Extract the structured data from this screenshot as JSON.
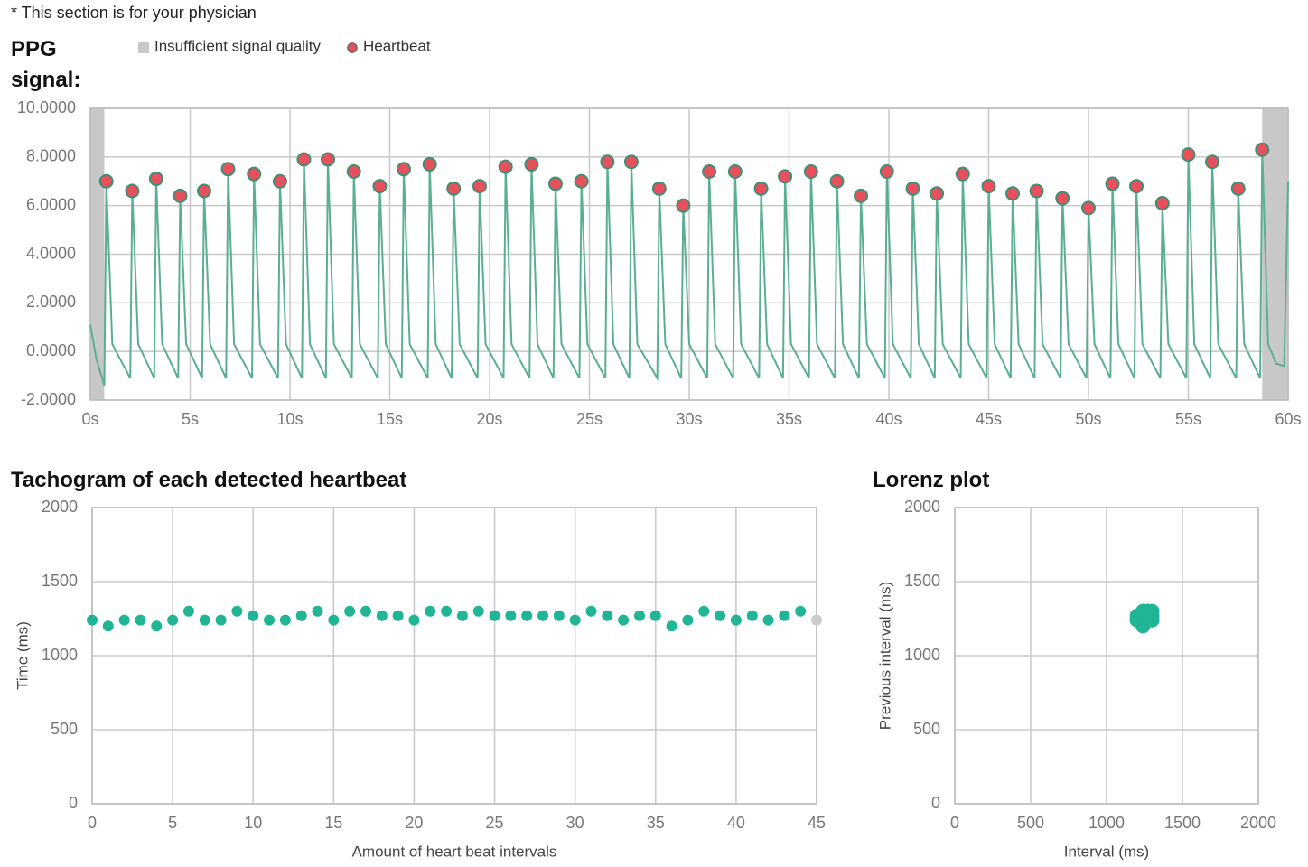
{
  "note": "* This section is for your physician",
  "chart_data": [
    {
      "type": "line",
      "title": "PPG signal:",
      "xlim": [
        0,
        60
      ],
      "ylim": [
        -2,
        10
      ],
      "xticks": [
        {
          "value": 0,
          "label": "0s"
        },
        {
          "value": 5,
          "label": "5s"
        },
        {
          "value": 10,
          "label": "10s"
        },
        {
          "value": 15,
          "label": "15s"
        },
        {
          "value": 20,
          "label": "20s"
        },
        {
          "value": 25,
          "label": "25s"
        },
        {
          "value": 30,
          "label": "30s"
        },
        {
          "value": 35,
          "label": "35s"
        },
        {
          "value": 40,
          "label": "40s"
        },
        {
          "value": 45,
          "label": "45s"
        },
        {
          "value": 50,
          "label": "50s"
        },
        {
          "value": 55,
          "label": "55s"
        },
        {
          "value": 60,
          "label": "60s"
        }
      ],
      "yticks": [
        {
          "value": -2,
          "label": "-2.0000"
        },
        {
          "value": 0,
          "label": "0.0000"
        },
        {
          "value": 2,
          "label": "2.0000"
        },
        {
          "value": 4,
          "label": "4.0000"
        },
        {
          "value": 6,
          "label": "6.0000"
        },
        {
          "value": 8,
          "label": "8.0000"
        },
        {
          "value": 10,
          "label": "10.0000"
        }
      ],
      "grid": true,
      "insufficient": {
        "name": "Insufficient signal quality",
        "color": "#c8c8c8",
        "regions": [
          [
            0,
            0.7
          ],
          [
            58.7,
            60
          ]
        ]
      },
      "series": [
        {
          "name": "Heartbeat",
          "color": "#e8505b",
          "marker": true,
          "x": [
            0.8,
            2.1,
            3.3,
            4.5,
            5.7,
            6.9,
            8.2,
            9.5,
            10.7,
            11.9,
            13.2,
            14.5,
            15.7,
            17.0,
            18.2,
            19.5,
            20.8,
            22.1,
            23.3,
            24.6,
            25.9,
            27.1,
            28.5,
            29.7,
            31.0,
            32.3,
            33.6,
            34.8,
            36.1,
            37.4,
            38.6,
            39.9,
            41.2,
            42.4,
            43.7,
            45.0,
            46.2,
            47.4,
            48.7,
            50.0,
            51.2,
            52.4,
            53.7,
            55.0,
            56.2,
            57.5,
            58.7
          ],
          "values": [
            7.0,
            6.6,
            7.1,
            6.4,
            6.6,
            7.5,
            7.3,
            7.0,
            7.9,
            7.9,
            7.4,
            6.8,
            7.5,
            7.7,
            6.7,
            6.8,
            7.6,
            7.7,
            6.9,
            7.0,
            7.8,
            7.8,
            6.7,
            6.0,
            7.4,
            7.4,
            6.7,
            7.2,
            7.4,
            7.0,
            6.4,
            7.4,
            6.7,
            6.5,
            7.3,
            6.8,
            6.5,
            6.6,
            6.3,
            5.9,
            6.9,
            6.8,
            6.1,
            8.1,
            7.8,
            6.7,
            8.3
          ]
        },
        {
          "color": "#5aae93",
          "x": [
            0,
            0.3,
            0.7,
            0.8,
            1.1,
            2.0,
            2.1,
            2.4,
            3.2,
            3.3,
            3.6,
            4.4,
            4.5,
            4.8,
            5.6,
            5.7,
            6.0,
            6.8,
            6.9,
            7.2,
            8.1,
            8.2,
            8.5,
            9.4,
            9.5,
            9.8,
            10.6,
            10.7,
            11.0,
            11.8,
            11.9,
            12.2,
            13.1,
            13.2,
            13.5,
            14.4,
            14.5,
            14.8,
            15.6,
            15.7,
            16.0,
            16.9,
            17.0,
            17.3,
            18.1,
            18.2,
            18.5,
            19.4,
            19.5,
            19.8,
            20.7,
            20.8,
            21.1,
            22.0,
            22.1,
            22.4,
            23.2,
            23.3,
            23.6,
            24.5,
            24.6,
            24.9,
            25.8,
            25.9,
            26.2,
            27.0,
            27.1,
            27.4,
            28.4,
            28.5,
            28.8,
            29.6,
            29.7,
            30.0,
            30.9,
            31.0,
            31.3,
            32.2,
            32.3,
            32.6,
            33.5,
            33.6,
            33.9,
            34.7,
            34.8,
            35.1,
            36.0,
            36.1,
            36.4,
            37.3,
            37.4,
            37.7,
            38.5,
            38.6,
            38.9,
            39.8,
            39.9,
            40.2,
            41.1,
            41.2,
            41.5,
            42.3,
            42.4,
            42.7,
            43.6,
            43.7,
            44.0,
            44.9,
            45.0,
            45.3,
            46.1,
            46.2,
            46.5,
            47.3,
            47.4,
            47.7,
            48.6,
            48.7,
            49.0,
            49.9,
            50.0,
            50.3,
            51.1,
            51.2,
            51.5,
            52.3,
            52.4,
            52.7,
            53.6,
            53.7,
            54.0,
            54.9,
            55.0,
            55.3,
            56.1,
            56.2,
            56.5,
            57.4,
            57.5,
            57.8,
            58.6,
            58.7,
            59.0,
            59.4,
            59.8,
            60
          ],
          "values": [
            1.1,
            -0.3,
            -1.4,
            7.0,
            0.3,
            -1.1,
            6.6,
            0.3,
            -1.1,
            7.1,
            0.3,
            -1.1,
            6.4,
            0.3,
            -1.1,
            6.6,
            0.3,
            -1.1,
            7.5,
            0.3,
            -1.1,
            7.3,
            0.3,
            -1.1,
            7.0,
            0.3,
            -1.1,
            7.9,
            0.3,
            -1.1,
            7.9,
            0.3,
            -1.1,
            7.4,
            0.3,
            -1.1,
            6.8,
            0.3,
            -1.1,
            7.5,
            0.3,
            -1.1,
            7.7,
            0.3,
            -1.1,
            6.7,
            0.3,
            -1.1,
            6.8,
            0.3,
            -1.1,
            7.6,
            0.3,
            -1.1,
            7.7,
            0.3,
            -1.1,
            6.9,
            0.3,
            -1.1,
            7.0,
            0.3,
            -1.1,
            7.8,
            0.3,
            -1.1,
            7.8,
            0.3,
            -1.1,
            6.7,
            0.3,
            -1.1,
            6.0,
            0.3,
            -1.1,
            7.4,
            0.3,
            -1.1,
            7.4,
            0.3,
            -1.1,
            6.7,
            0.3,
            -1.1,
            7.2,
            0.3,
            -1.1,
            7.4,
            0.3,
            -1.1,
            7.0,
            0.3,
            -1.1,
            6.4,
            0.3,
            -1.1,
            7.4,
            0.3,
            -1.1,
            6.7,
            0.3,
            -1.1,
            6.5,
            0.3,
            -1.1,
            7.3,
            0.3,
            -1.1,
            6.8,
            0.3,
            -1.1,
            6.5,
            0.3,
            -1.1,
            6.6,
            0.3,
            -1.1,
            6.3,
            0.3,
            -1.1,
            5.9,
            0.3,
            -1.1,
            6.9,
            0.3,
            -1.1,
            6.8,
            0.3,
            -1.1,
            6.1,
            0.3,
            -1.1,
            8.1,
            0.3,
            -1.1,
            7.8,
            0.3,
            -1.1,
            6.7,
            0.3,
            -1.1,
            8.3,
            0.3,
            -0.5,
            -0.6,
            7.0
          ]
        }
      ]
    },
    {
      "type": "scatter",
      "title": "Tachogram of each detected heartbeat",
      "xlabel": "Amount of heart beat intervals",
      "ylabel": "Time (ms)",
      "xlim": [
        0,
        45
      ],
      "ylim": [
        0,
        2000
      ],
      "xticks": [
        0,
        5,
        10,
        15,
        20,
        25,
        30,
        35,
        40,
        45
      ],
      "yticks": [
        0,
        500,
        1000,
        1500,
        2000
      ],
      "grid": true,
      "series": [
        {
          "color": "#1fb595",
          "x": [
            0,
            1,
            2,
            3,
            4,
            5,
            6,
            7,
            8,
            9,
            10,
            11,
            12,
            13,
            14,
            15,
            16,
            17,
            18,
            19,
            20,
            21,
            22,
            23,
            24,
            25,
            26,
            27,
            28,
            29,
            30,
            31,
            32,
            33,
            34,
            35,
            36,
            37,
            38,
            39,
            40,
            41,
            42,
            43,
            44
          ],
          "values": [
            1240,
            1200,
            1240,
            1240,
            1200,
            1240,
            1300,
            1240,
            1240,
            1300,
            1270,
            1240,
            1240,
            1270,
            1300,
            1240,
            1300,
            1300,
            1270,
            1270,
            1240,
            1300,
            1300,
            1270,
            1300,
            1270,
            1270,
            1270,
            1270,
            1270,
            1240,
            1300,
            1270,
            1240,
            1270,
            1270,
            1200,
            1240,
            1300,
            1270,
            1240,
            1270,
            1240,
            1270,
            1300
          ]
        },
        {
          "color": "#cccccc",
          "x": [
            45
          ],
          "values": [
            1240
          ]
        }
      ]
    },
    {
      "type": "scatter",
      "title": "Lorenz plot",
      "xlabel": "Interval (ms)",
      "ylabel": "Previous interval (ms)",
      "xlim": [
        0,
        2000
      ],
      "ylim": [
        0,
        2000
      ],
      "xticks": [
        0,
        500,
        1000,
        1500,
        2000
      ],
      "yticks": [
        0,
        500,
        1000,
        1500,
        2000
      ],
      "grid": true,
      "series": [
        {
          "color": "#1fb595",
          "x": [
            1200,
            1240,
            1240,
            1200,
            1240,
            1300,
            1240,
            1240,
            1300,
            1270,
            1240,
            1240,
            1270,
            1300,
            1240,
            1300,
            1300,
            1270,
            1270,
            1240,
            1300,
            1300,
            1270,
            1300,
            1270,
            1270,
            1270,
            1270,
            1270,
            1240,
            1300,
            1270,
            1240,
            1270,
            1270,
            1200,
            1240,
            1300,
            1270,
            1240,
            1270,
            1240,
            1270,
            1300,
            1240
          ],
          "values": [
            1240,
            1200,
            1240,
            1240,
            1200,
            1240,
            1300,
            1240,
            1240,
            1300,
            1270,
            1240,
            1240,
            1270,
            1300,
            1240,
            1300,
            1300,
            1270,
            1270,
            1240,
            1300,
            1300,
            1270,
            1300,
            1270,
            1270,
            1270,
            1270,
            1270,
            1240,
            1300,
            1270,
            1240,
            1270,
            1270,
            1200,
            1240,
            1300,
            1270,
            1240,
            1270,
            1240,
            1270,
            1300
          ]
        }
      ]
    }
  ]
}
